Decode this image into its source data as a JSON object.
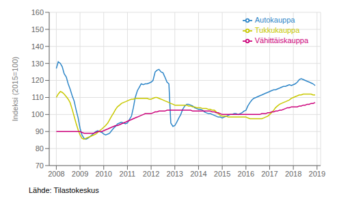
{
  "chart_data": {
    "type": "line",
    "ylabel": "Indeksi (2015=100)",
    "source": "Lähde: Tilastokeskus",
    "x": [
      2008.0,
      2008.08,
      2008.17,
      2008.25,
      2008.33,
      2008.42,
      2008.5,
      2008.58,
      2008.67,
      2008.75,
      2008.83,
      2008.92,
      2009.0,
      2009.08,
      2009.17,
      2009.25,
      2009.33,
      2009.42,
      2009.5,
      2009.58,
      2009.67,
      2009.75,
      2009.83,
      2009.92,
      2010.0,
      2010.08,
      2010.17,
      2010.25,
      2010.33,
      2010.42,
      2010.5,
      2010.58,
      2010.67,
      2010.75,
      2010.83,
      2010.92,
      2011.0,
      2011.08,
      2011.17,
      2011.25,
      2011.33,
      2011.42,
      2011.5,
      2011.58,
      2011.67,
      2011.75,
      2011.83,
      2011.92,
      2012.0,
      2012.08,
      2012.17,
      2012.25,
      2012.33,
      2012.42,
      2012.5,
      2012.58,
      2012.67,
      2012.75,
      2012.83,
      2012.92,
      2013.0,
      2013.08,
      2013.17,
      2013.25,
      2013.33,
      2013.42,
      2013.5,
      2013.58,
      2013.67,
      2013.75,
      2013.83,
      2013.92,
      2014.0,
      2014.08,
      2014.17,
      2014.25,
      2014.33,
      2014.42,
      2014.5,
      2014.58,
      2014.67,
      2014.75,
      2014.83,
      2014.92,
      2015.0,
      2015.08,
      2015.17,
      2015.25,
      2015.33,
      2015.42,
      2015.5,
      2015.58,
      2015.67,
      2015.75,
      2015.83,
      2015.92,
      2016.0,
      2016.08,
      2016.17,
      2016.25,
      2016.33,
      2016.42,
      2016.5,
      2016.58,
      2016.67,
      2016.75,
      2016.83,
      2016.92,
      2017.0,
      2017.08,
      2017.17,
      2017.25,
      2017.33,
      2017.42,
      2017.5,
      2017.58,
      2017.67,
      2017.75,
      2017.83,
      2017.92,
      2018.0,
      2018.08,
      2018.17,
      2018.25,
      2018.33,
      2018.42,
      2018.5,
      2018.58,
      2018.67,
      2018.75,
      2018.83,
      2018.92
    ],
    "series": [
      {
        "name": "Autokauppa",
        "color": "#2e86c8",
        "values": [
          127.0,
          131.0,
          130.0,
          128.0,
          124.0,
          122.0,
          118.0,
          115.0,
          111.0,
          108.0,
          103.0,
          98.0,
          92.0,
          88.0,
          86.0,
          85.5,
          86.0,
          87.0,
          88.0,
          89.0,
          90.0,
          90.5,
          90.0,
          89.5,
          88.5,
          88.0,
          88.5,
          89.0,
          90.5,
          92.0,
          93.0,
          94.5,
          95.0,
          95.5,
          95.0,
          94.5,
          95.0,
          97.0,
          99.0,
          104.0,
          110.0,
          114.0,
          116.0,
          118.0,
          117.5,
          118.0,
          118.0,
          118.5,
          119.0,
          120.0,
          125.0,
          126.0,
          126.5,
          125.0,
          124.5,
          122.0,
          119.0,
          118.0,
          95.0,
          93.0,
          93.5,
          95.5,
          98.0,
          100.0,
          103.0,
          105.0,
          106.0,
          106.0,
          105.5,
          105.0,
          104.0,
          103.5,
          103.0,
          103.0,
          102.5,
          101.5,
          101.0,
          100.5,
          100.5,
          100.0,
          99.5,
          99.0,
          98.5,
          98.5,
          98.0,
          98.5,
          99.0,
          99.5,
          100.0,
          100.0,
          100.5,
          100.5,
          100.0,
          100.5,
          101.0,
          102.0,
          102.5,
          105.0,
          107.0,
          108.5,
          109.5,
          110.0,
          110.5,
          111.0,
          111.5,
          112.0,
          112.5,
          113.0,
          113.5,
          114.0,
          114.5,
          114.5,
          115.0,
          115.5,
          116.0,
          116.5,
          116.5,
          117.0,
          117.5,
          117.0,
          117.5,
          118.0,
          119.0,
          120.5,
          121.0,
          120.5,
          120.0,
          119.5,
          119.0,
          118.5,
          118.0,
          117.0
        ]
      },
      {
        "name": "Tukkukauppa",
        "color": "#c8c800",
        "values": [
          110.0,
          112.0,
          113.5,
          113.0,
          112.0,
          110.5,
          109.0,
          107.0,
          103.0,
          99.0,
          95.0,
          91.0,
          88.0,
          86.0,
          85.5,
          86.0,
          86.5,
          87.0,
          87.5,
          88.0,
          88.5,
          89.5,
          90.5,
          91.5,
          92.5,
          93.5,
          95.0,
          97.0,
          99.0,
          101.0,
          103.0,
          104.5,
          105.5,
          106.5,
          107.0,
          107.5,
          108.0,
          108.5,
          109.0,
          109.0,
          109.5,
          109.5,
          109.5,
          109.5,
          109.5,
          109.5,
          109.5,
          109.0,
          109.0,
          109.5,
          110.0,
          110.0,
          109.5,
          109.0,
          108.5,
          108.0,
          107.5,
          107.0,
          106.5,
          106.0,
          105.5,
          105.5,
          105.5,
          105.5,
          105.5,
          105.5,
          105.5,
          105.0,
          105.0,
          104.5,
          104.5,
          104.0,
          104.0,
          104.0,
          103.5,
          103.5,
          103.5,
          103.0,
          103.0,
          102.5,
          102.5,
          101.5,
          100.5,
          99.5,
          99.0,
          99.0,
          99.0,
          98.5,
          98.5,
          98.5,
          98.5,
          98.5,
          98.5,
          98.5,
          98.5,
          98.5,
          98.5,
          98.0,
          97.5,
          97.5,
          97.5,
          97.5,
          97.5,
          97.5,
          97.5,
          98.0,
          98.5,
          99.0,
          100.0,
          101.0,
          102.5,
          104.0,
          105.0,
          106.0,
          106.5,
          107.0,
          107.5,
          108.0,
          108.5,
          109.5,
          110.0,
          110.5,
          111.0,
          111.5,
          111.5,
          112.0,
          112.0,
          112.0,
          112.0,
          112.0,
          111.5,
          111.5
        ]
      },
      {
        "name": "Vähittäiskauppa",
        "color": "#cc007a",
        "values": [
          90.0,
          90.0,
          90.0,
          90.0,
          90.0,
          90.0,
          90.0,
          90.0,
          90.0,
          90.0,
          90.0,
          90.0,
          90.0,
          89.5,
          89.0,
          89.0,
          89.0,
          89.0,
          89.0,
          89.0,
          89.5,
          90.0,
          90.0,
          90.0,
          90.5,
          91.0,
          91.5,
          92.0,
          92.5,
          93.0,
          93.5,
          93.5,
          94.0,
          94.5,
          95.0,
          95.5,
          96.0,
          96.5,
          97.0,
          97.5,
          98.0,
          98.5,
          99.0,
          99.5,
          100.0,
          100.5,
          100.5,
          100.5,
          100.5,
          101.0,
          101.5,
          101.5,
          102.0,
          102.0,
          102.0,
          102.0,
          102.5,
          102.5,
          102.5,
          102.5,
          102.5,
          102.5,
          102.5,
          102.5,
          102.5,
          102.5,
          102.5,
          102.5,
          102.5,
          102.0,
          102.0,
          102.0,
          102.0,
          102.0,
          102.0,
          102.0,
          102.0,
          102.0,
          102.0,
          101.5,
          101.5,
          101.0,
          101.0,
          100.5,
          100.0,
          100.0,
          100.0,
          100.0,
          100.0,
          100.0,
          100.0,
          100.0,
          100.0,
          100.0,
          100.0,
          100.0,
          100.0,
          100.0,
          100.0,
          100.0,
          100.0,
          100.0,
          100.0,
          100.0,
          100.5,
          100.5,
          100.5,
          101.0,
          101.0,
          101.5,
          101.5,
          102.0,
          102.0,
          102.5,
          102.5,
          103.0,
          103.5,
          104.0,
          104.0,
          104.5,
          104.5,
          104.5,
          104.5,
          105.0,
          105.0,
          105.5,
          105.5,
          106.0,
          106.0,
          106.5,
          106.5,
          107.0
        ]
      }
    ],
    "xlim": [
      2007.7,
      2019.15
    ],
    "xticks": [
      2008,
      2009,
      2010,
      2011,
      2012,
      2013,
      2014,
      2015,
      2016,
      2017,
      2018,
      2019
    ],
    "ylim": [
      70,
      160
    ],
    "yticks": [
      70,
      80,
      90,
      100,
      110,
      120,
      130,
      140,
      150,
      160
    ],
    "grid": true,
    "legend": "upper right"
  }
}
